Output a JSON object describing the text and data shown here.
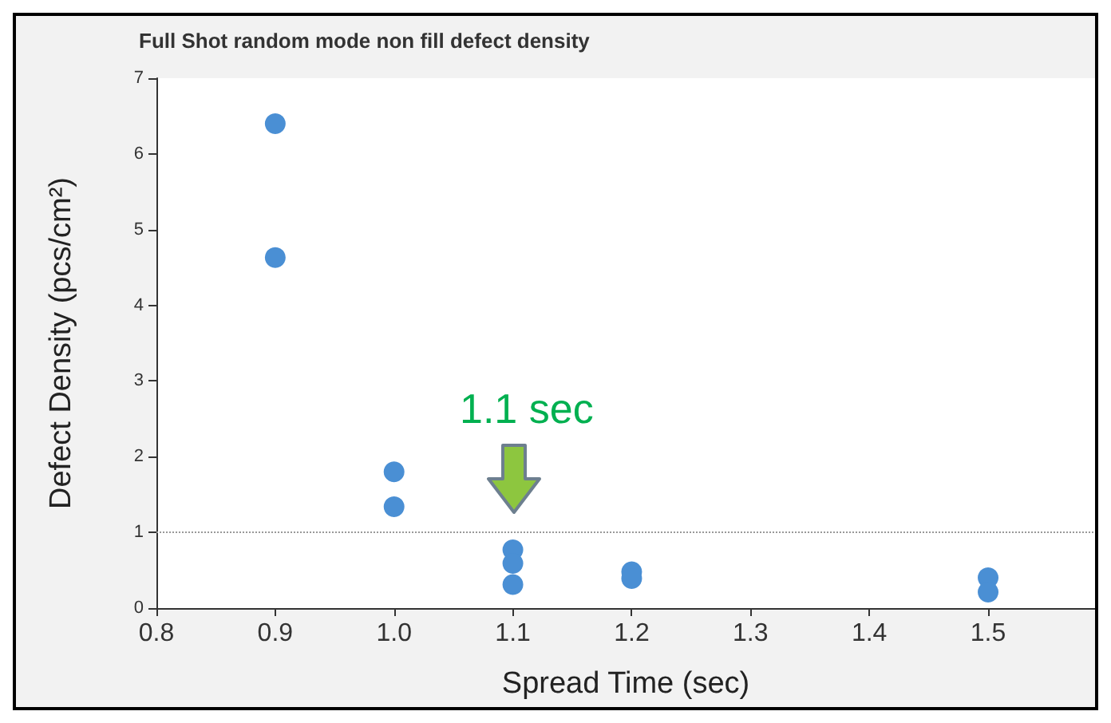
{
  "chart_data": {
    "type": "scatter",
    "title": "Full Shot random mode non fill defect density",
    "xlabel": "Spread Time (sec)",
    "ylabel": "Defect Density (pcs/cm²)",
    "x": [
      0.9,
      0.9,
      1.0,
      1.0,
      1.1,
      1.1,
      1.1,
      1.2,
      1.2,
      1.5,
      1.5
    ],
    "series": [
      {
        "color": "#4a8fd4",
        "values": [
          6.4,
          4.63,
          1.8,
          1.34,
          0.77,
          0.59,
          0.31,
          0.48,
          0.39,
          0.4,
          0.21
        ]
      }
    ],
    "xlim": [
      0.8,
      1.59
    ],
    "xticks": [
      0.8,
      0.9,
      {
        "value": 1,
        "label": "1.0"
      },
      1.1,
      1.2,
      1.3,
      1.4,
      1.5
    ],
    "ylim": [
      0,
      7
    ],
    "yticks": [
      0,
      1,
      2,
      3,
      4,
      5,
      6,
      7
    ],
    "grid": false,
    "marker": "circle",
    "ref_lines": [
      {
        "axis": "y",
        "value": 1,
        "color": "#999999",
        "line_style": "dotted"
      }
    ],
    "annotations": [
      "1.1 sec"
    ]
  }
}
